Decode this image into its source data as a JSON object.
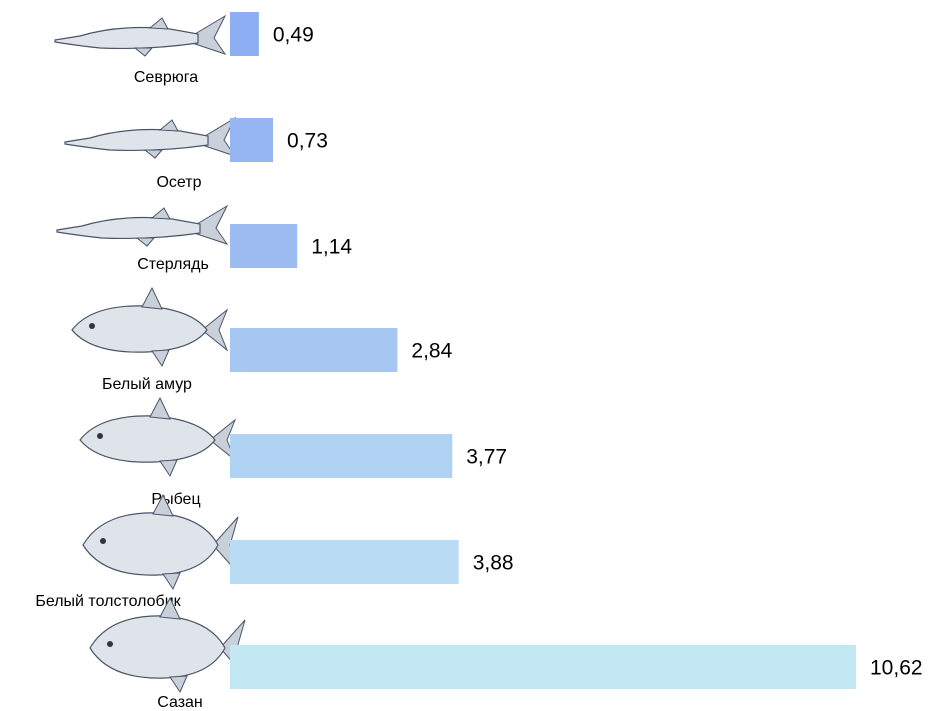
{
  "chart_data": {
    "type": "bar",
    "orientation": "horizontal",
    "categories": [
      "Севрюга",
      "Осетр",
      "Стерлядь",
      "Белый амур",
      "Рыбец",
      "Белый толстолобик",
      "Сазан"
    ],
    "values": [
      0.49,
      0.73,
      1.14,
      2.84,
      3.77,
      3.88,
      10.62
    ],
    "value_labels": [
      "0,49",
      "0,73",
      "1,14",
      "2,84",
      "3,77",
      "3,88",
      "10,62"
    ],
    "colors": [
      "#8eaef4",
      "#95b5f3",
      "#9dbcf2",
      "#a6c7f2",
      "#b0d2f3",
      "#b9dcf4",
      "#c4e7f4"
    ]
  }
}
